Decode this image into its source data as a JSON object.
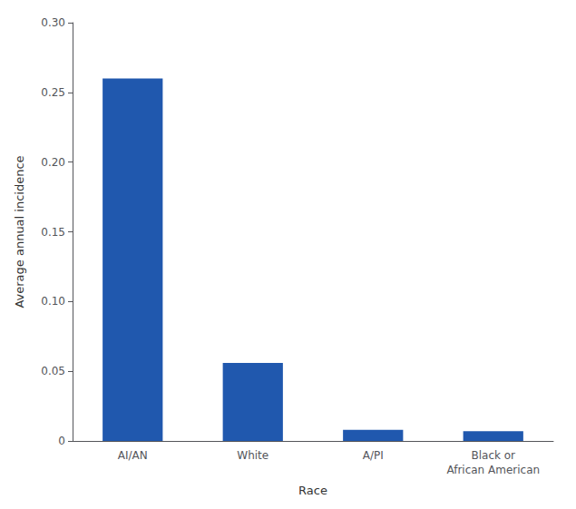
{
  "chart_data": {
    "type": "bar",
    "categories": [
      "AI/AN",
      "White",
      "A/PI",
      "Black or\nAfrican American"
    ],
    "values": [
      0.26,
      0.056,
      0.008,
      0.007
    ],
    "color": "#2058AE",
    "xlabel": "Race",
    "ylabel": "Average annual incidence",
    "ylim": [
      0,
      0.3
    ],
    "yticks": [
      0,
      0.05,
      {
        "value": 0.1,
        "label": "0.10"
      },
      0.15,
      {
        "value": 0.2,
        "label": "0.20"
      },
      0.25,
      {
        "value": 0.3,
        "label": "0.30"
      }
    ],
    "grid": false
  }
}
